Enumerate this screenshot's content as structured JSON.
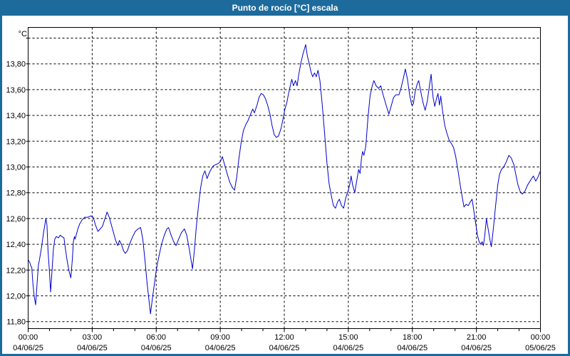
{
  "window": {
    "title": "Punto de rocío [°C] escala"
  },
  "colors": {
    "titlebar": "#1d6b9d",
    "window_border": "#1d6b9d",
    "plot_background": "#ffffff",
    "plot_border": "#000000",
    "gridline": "#000000",
    "axis_text": "#000000",
    "line": "#0000cc"
  },
  "chart_data": {
    "type": "line",
    "title": "Punto de rocío [°C] escala",
    "ylabel": "°C",
    "xlabel": "",
    "grid": "dashed",
    "legend": "none",
    "ylim": [
      11.75,
      14.08
    ],
    "x_hours_range": [
      0,
      24
    ],
    "minor_tick_every_hours": 1,
    "yticks": [
      {
        "value": 14.0,
        "label": ""
      },
      {
        "value": 13.8,
        "label": "13,80"
      },
      {
        "value": 13.6,
        "label": "13,60"
      },
      {
        "value": 13.4,
        "label": "13,40"
      },
      {
        "value": 13.2,
        "label": "13,20"
      },
      {
        "value": 13.0,
        "label": "13,00"
      },
      {
        "value": 12.8,
        "label": "12,80"
      },
      {
        "value": 12.6,
        "label": "12,60"
      },
      {
        "value": 12.4,
        "label": "12,40"
      },
      {
        "value": 12.2,
        "label": "12,20"
      },
      {
        "value": 12.0,
        "label": "12,00"
      },
      {
        "value": 11.8,
        "label": "11,80"
      }
    ],
    "xticks": [
      {
        "hour": 0,
        "time": "00:00",
        "date": "04/06/25"
      },
      {
        "hour": 3,
        "time": "03:00",
        "date": "04/06/25"
      },
      {
        "hour": 6,
        "time": "06:00",
        "date": "04/06/25"
      },
      {
        "hour": 9,
        "time": "09:00",
        "date": "04/06/25"
      },
      {
        "hour": 12,
        "time": "12:00",
        "date": "04/06/25"
      },
      {
        "hour": 15,
        "time": "15:00",
        "date": "04/06/25"
      },
      {
        "hour": 18,
        "time": "18:00",
        "date": "04/06/25"
      },
      {
        "hour": 21,
        "time": "21:00",
        "date": "04/06/25"
      },
      {
        "hour": 24,
        "time": "00:00",
        "date": "05/06/25"
      }
    ],
    "series": [
      {
        "name": "Punto de rocío [°C]",
        "color": "#0000cc",
        "points": [
          [
            0.0,
            12.28
          ],
          [
            0.07,
            12.26
          ],
          [
            0.13,
            12.23
          ],
          [
            0.17,
            12.22
          ],
          [
            0.22,
            12.1
          ],
          [
            0.28,
            12.0
          ],
          [
            0.35,
            11.93
          ],
          [
            0.42,
            12.1
          ],
          [
            0.48,
            12.24
          ],
          [
            0.53,
            12.28
          ],
          [
            0.63,
            12.38
          ],
          [
            0.73,
            12.5
          ],
          [
            0.83,
            12.6
          ],
          [
            0.88,
            12.55
          ],
          [
            0.93,
            12.35
          ],
          [
            1.0,
            12.18
          ],
          [
            1.05,
            12.03
          ],
          [
            1.12,
            12.2
          ],
          [
            1.18,
            12.36
          ],
          [
            1.25,
            12.44
          ],
          [
            1.32,
            12.46
          ],
          [
            1.42,
            12.45
          ],
          [
            1.5,
            12.47
          ],
          [
            1.58,
            12.46
          ],
          [
            1.68,
            12.45
          ],
          [
            1.75,
            12.36
          ],
          [
            1.83,
            12.27
          ],
          [
            1.92,
            12.19
          ],
          [
            2.0,
            12.14
          ],
          [
            2.07,
            12.28
          ],
          [
            2.12,
            12.42
          ],
          [
            2.17,
            12.46
          ],
          [
            2.2,
            12.44
          ],
          [
            2.25,
            12.47
          ],
          [
            2.33,
            12.52
          ],
          [
            2.42,
            12.56
          ],
          [
            2.53,
            12.59
          ],
          [
            2.65,
            12.61
          ],
          [
            2.8,
            12.61
          ],
          [
            2.93,
            12.62
          ],
          [
            3.05,
            12.61
          ],
          [
            3.15,
            12.55
          ],
          [
            3.27,
            12.5
          ],
          [
            3.38,
            12.52
          ],
          [
            3.48,
            12.54
          ],
          [
            3.58,
            12.59
          ],
          [
            3.7,
            12.65
          ],
          [
            3.8,
            12.61
          ],
          [
            3.9,
            12.55
          ],
          [
            4.0,
            12.49
          ],
          [
            4.1,
            12.43
          ],
          [
            4.2,
            12.39
          ],
          [
            4.28,
            12.43
          ],
          [
            4.37,
            12.4
          ],
          [
            4.47,
            12.35
          ],
          [
            4.55,
            12.33
          ],
          [
            4.65,
            12.35
          ],
          [
            4.77,
            12.41
          ],
          [
            4.9,
            12.46
          ],
          [
            5.02,
            12.5
          ],
          [
            5.15,
            12.52
          ],
          [
            5.27,
            12.53
          ],
          [
            5.37,
            12.44
          ],
          [
            5.47,
            12.28
          ],
          [
            5.57,
            12.1
          ],
          [
            5.67,
            11.95
          ],
          [
            5.73,
            11.86
          ],
          [
            5.82,
            11.98
          ],
          [
            5.92,
            12.1
          ],
          [
            6.0,
            12.2
          ],
          [
            6.12,
            12.3
          ],
          [
            6.25,
            12.4
          ],
          [
            6.38,
            12.47
          ],
          [
            6.5,
            12.52
          ],
          [
            6.58,
            12.53
          ],
          [
            6.7,
            12.47
          ],
          [
            6.82,
            12.42
          ],
          [
            6.93,
            12.39
          ],
          [
            7.05,
            12.44
          ],
          [
            7.18,
            12.49
          ],
          [
            7.32,
            12.52
          ],
          [
            7.43,
            12.47
          ],
          [
            7.53,
            12.38
          ],
          [
            7.63,
            12.28
          ],
          [
            7.7,
            12.21
          ],
          [
            7.78,
            12.34
          ],
          [
            7.88,
            12.54
          ],
          [
            7.98,
            12.7
          ],
          [
            8.08,
            12.84
          ],
          [
            8.18,
            12.93
          ],
          [
            8.28,
            12.97
          ],
          [
            8.38,
            12.91
          ],
          [
            8.5,
            12.96
          ],
          [
            8.6,
            12.99
          ],
          [
            8.68,
            13.01
          ],
          [
            8.82,
            13.02
          ],
          [
            8.93,
            13.03
          ],
          [
            9.0,
            13.04
          ],
          [
            9.1,
            13.08
          ],
          [
            9.2,
            13.02
          ],
          [
            9.32,
            12.95
          ],
          [
            9.45,
            12.88
          ],
          [
            9.57,
            12.84
          ],
          [
            9.67,
            12.82
          ],
          [
            9.77,
            12.92
          ],
          [
            9.87,
            13.06
          ],
          [
            9.97,
            13.18
          ],
          [
            10.08,
            13.28
          ],
          [
            10.2,
            13.33
          ],
          [
            10.3,
            13.36
          ],
          [
            10.42,
            13.41
          ],
          [
            10.52,
            13.45
          ],
          [
            10.6,
            13.42
          ],
          [
            10.72,
            13.48
          ],
          [
            10.82,
            13.54
          ],
          [
            10.92,
            13.57
          ],
          [
            11.02,
            13.56
          ],
          [
            11.12,
            13.53
          ],
          [
            11.22,
            13.48
          ],
          [
            11.33,
            13.41
          ],
          [
            11.43,
            13.32
          ],
          [
            11.53,
            13.25
          ],
          [
            11.63,
            13.23
          ],
          [
            11.73,
            13.24
          ],
          [
            11.85,
            13.3
          ],
          [
            11.95,
            13.38
          ],
          [
            12.03,
            13.45
          ],
          [
            12.12,
            13.5
          ],
          [
            12.2,
            13.57
          ],
          [
            12.28,
            13.63
          ],
          [
            12.35,
            13.68
          ],
          [
            12.43,
            13.63
          ],
          [
            12.52,
            13.67
          ],
          [
            12.6,
            13.63
          ],
          [
            12.68,
            13.72
          ],
          [
            12.78,
            13.81
          ],
          [
            12.88,
            13.88
          ],
          [
            13.0,
            13.95
          ],
          [
            13.08,
            13.86
          ],
          [
            13.17,
            13.8
          ],
          [
            13.25,
            13.74
          ],
          [
            13.33,
            13.7
          ],
          [
            13.42,
            13.73
          ],
          [
            13.5,
            13.7
          ],
          [
            13.58,
            13.75
          ],
          [
            13.67,
            13.67
          ],
          [
            13.77,
            13.5
          ],
          [
            13.88,
            13.28
          ],
          [
            14.0,
            13.03
          ],
          [
            14.1,
            12.87
          ],
          [
            14.2,
            12.78
          ],
          [
            14.3,
            12.7
          ],
          [
            14.4,
            12.68
          ],
          [
            14.5,
            12.73
          ],
          [
            14.58,
            12.75
          ],
          [
            14.68,
            12.7
          ],
          [
            14.78,
            12.68
          ],
          [
            14.88,
            12.76
          ],
          [
            15.0,
            12.82
          ],
          [
            15.07,
            12.87
          ],
          [
            15.13,
            12.93
          ],
          [
            15.2,
            12.86
          ],
          [
            15.3,
            12.8
          ],
          [
            15.4,
            12.9
          ],
          [
            15.48,
            12.98
          ],
          [
            15.55,
            12.95
          ],
          [
            15.62,
            13.07
          ],
          [
            15.67,
            13.12
          ],
          [
            15.73,
            13.09
          ],
          [
            15.82,
            13.16
          ],
          [
            15.92,
            13.38
          ],
          [
            16.02,
            13.55
          ],
          [
            16.12,
            13.63
          ],
          [
            16.2,
            13.67
          ],
          [
            16.3,
            13.63
          ],
          [
            16.42,
            13.61
          ],
          [
            16.52,
            13.63
          ],
          [
            16.63,
            13.56
          ],
          [
            16.77,
            13.48
          ],
          [
            16.9,
            13.41
          ],
          [
            17.02,
            13.48
          ],
          [
            17.12,
            13.54
          ],
          [
            17.23,
            13.56
          ],
          [
            17.37,
            13.56
          ],
          [
            17.48,
            13.62
          ],
          [
            17.58,
            13.69
          ],
          [
            17.67,
            13.76
          ],
          [
            17.77,
            13.68
          ],
          [
            17.87,
            13.56
          ],
          [
            17.97,
            13.48
          ],
          [
            18.05,
            13.49
          ],
          [
            18.13,
            13.58
          ],
          [
            18.22,
            13.64
          ],
          [
            18.3,
            13.67
          ],
          [
            18.4,
            13.58
          ],
          [
            18.5,
            13.5
          ],
          [
            18.6,
            13.44
          ],
          [
            18.7,
            13.51
          ],
          [
            18.8,
            13.63
          ],
          [
            18.88,
            13.72
          ],
          [
            18.97,
            13.54
          ],
          [
            19.05,
            13.47
          ],
          [
            19.13,
            13.53
          ],
          [
            19.2,
            13.57
          ],
          [
            19.27,
            13.48
          ],
          [
            19.33,
            13.55
          ],
          [
            19.42,
            13.43
          ],
          [
            19.52,
            13.32
          ],
          [
            19.62,
            13.26
          ],
          [
            19.72,
            13.21
          ],
          [
            19.83,
            13.18
          ],
          [
            19.93,
            13.15
          ],
          [
            20.03,
            13.08
          ],
          [
            20.13,
            12.98
          ],
          [
            20.23,
            12.87
          ],
          [
            20.33,
            12.77
          ],
          [
            20.42,
            12.69
          ],
          [
            20.52,
            12.71
          ],
          [
            20.62,
            12.7
          ],
          [
            20.72,
            12.73
          ],
          [
            20.8,
            12.75
          ],
          [
            20.88,
            12.66
          ],
          [
            20.97,
            12.56
          ],
          [
            21.05,
            12.47
          ],
          [
            21.13,
            12.42
          ],
          [
            21.2,
            12.4
          ],
          [
            21.27,
            12.42
          ],
          [
            21.33,
            12.39
          ],
          [
            21.4,
            12.48
          ],
          [
            21.47,
            12.6
          ],
          [
            21.55,
            12.52
          ],
          [
            21.63,
            12.44
          ],
          [
            21.7,
            12.38
          ],
          [
            21.8,
            12.53
          ],
          [
            21.9,
            12.7
          ],
          [
            22.0,
            12.86
          ],
          [
            22.08,
            12.94
          ],
          [
            22.17,
            12.98
          ],
          [
            22.28,
            13.0
          ],
          [
            22.4,
            13.04
          ],
          [
            22.52,
            13.09
          ],
          [
            22.63,
            13.07
          ],
          [
            22.75,
            13.02
          ],
          [
            22.85,
            12.94
          ],
          [
            22.95,
            12.86
          ],
          [
            23.05,
            12.81
          ],
          [
            23.15,
            12.79
          ],
          [
            23.27,
            12.81
          ],
          [
            23.4,
            12.86
          ],
          [
            23.55,
            12.9
          ],
          [
            23.67,
            12.93
          ],
          [
            23.78,
            12.89
          ],
          [
            23.88,
            12.92
          ],
          [
            24.0,
            12.97
          ]
        ]
      }
    ]
  }
}
